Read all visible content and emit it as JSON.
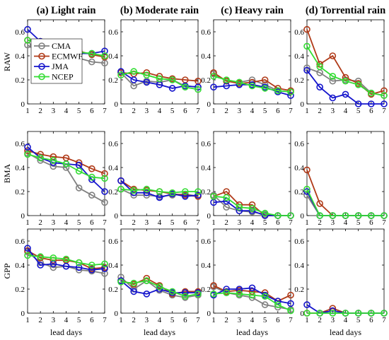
{
  "chart_data": {
    "type": "line",
    "columns": [
      "(a) Light rain",
      "(b) Moderate rain",
      "(c) Heavy rain",
      "(d) Torrential rain"
    ],
    "rows": [
      "RAW",
      "BMA",
      "GPP"
    ],
    "xlabel": "lead days",
    "x": [
      1,
      2,
      3,
      4,
      5,
      6,
      7
    ],
    "ylim": [
      0,
      0.7
    ],
    "yticks": [
      0,
      0.2,
      0.4,
      0.6
    ],
    "ytick_labels": [
      "0",
      "0.2",
      "0.4",
      "0.6"
    ],
    "grid": false,
    "legend": {
      "placement": "inside top-left of first panel",
      "entries": [
        "CMA",
        "ECMWF",
        "JMA",
        "NCEP"
      ]
    },
    "series_colors": {
      "CMA": "#808080",
      "ECMWF": "#b03a18",
      "JMA": "#1515cc",
      "NCEP": "#33dd33"
    },
    "panels": [
      {
        "row": "RAW",
        "column": "(a) Light rain",
        "series": [
          {
            "name": "CMA",
            "values": [
              0.49,
              0.42,
              0.38,
              0.41,
              0.38,
              0.35,
              0.34
            ]
          },
          {
            "name": "ECMWF",
            "values": [
              0.53,
              0.52,
              0.45,
              0.44,
              0.44,
              0.41,
              0.39
            ]
          },
          {
            "name": "JMA",
            "values": [
              0.62,
              0.52,
              0.44,
              0.42,
              0.42,
              0.42,
              0.44
            ]
          },
          {
            "name": "NCEP",
            "values": [
              0.53,
              0.51,
              0.47,
              0.45,
              0.43,
              0.42,
              0.4
            ]
          }
        ]
      },
      {
        "row": "RAW",
        "column": "(b) Moderate rain",
        "series": [
          {
            "name": "CMA",
            "values": [
              0.26,
              0.15,
              0.19,
              0.18,
              0.2,
              0.15,
              0.14
            ]
          },
          {
            "name": "ECMWF",
            "values": [
              0.26,
              0.25,
              0.26,
              0.23,
              0.21,
              0.2,
              0.19
            ]
          },
          {
            "name": "JMA",
            "values": [
              0.27,
              0.2,
              0.18,
              0.16,
              0.13,
              0.15,
              0.14
            ]
          },
          {
            "name": "NCEP",
            "values": [
              0.24,
              0.27,
              0.24,
              0.21,
              0.2,
              0.14,
              0.12
            ]
          }
        ]
      },
      {
        "row": "RAW",
        "column": "(c) Heavy rain",
        "series": [
          {
            "name": "CMA",
            "values": [
              0.25,
              0.19,
              0.18,
              0.2,
              0.16,
              0.11,
              0.1
            ]
          },
          {
            "name": "ECMWF",
            "values": [
              0.26,
              0.19,
              0.17,
              0.18,
              0.2,
              0.13,
              0.11
            ]
          },
          {
            "name": "JMA",
            "values": [
              0.14,
              0.15,
              0.16,
              0.16,
              0.14,
              0.1,
              0.07
            ]
          },
          {
            "name": "NCEP",
            "values": [
              0.23,
              0.2,
              0.18,
              0.15,
              0.13,
              0.11,
              0.1
            ]
          }
        ]
      },
      {
        "row": "RAW",
        "column": "(d) Torrential rain",
        "series": [
          {
            "name": "CMA",
            "values": [
              0.3,
              0.26,
              0.19,
              0.2,
              0.19,
              0.09,
              0.07
            ]
          },
          {
            "name": "ECMWF",
            "values": [
              0.62,
              0.33,
              0.4,
              0.22,
              0.17,
              0.08,
              0.11
            ]
          },
          {
            "name": "JMA",
            "values": [
              0.28,
              0.14,
              0.05,
              0.08,
              0.0,
              0.0,
              0.0
            ]
          },
          {
            "name": "NCEP",
            "values": [
              0.48,
              0.31,
              0.23,
              0.19,
              0.16,
              0.09,
              0.07
            ]
          }
        ]
      },
      {
        "row": "BMA",
        "column": "(a) Light rain",
        "series": [
          {
            "name": "CMA",
            "values": [
              0.52,
              0.46,
              0.41,
              0.4,
              0.23,
              0.17,
              0.11
            ]
          },
          {
            "name": "ECMWF",
            "values": [
              0.54,
              0.51,
              0.49,
              0.48,
              0.44,
              0.39,
              0.35
            ]
          },
          {
            "name": "JMA",
            "values": [
              0.57,
              0.48,
              0.44,
              0.43,
              0.42,
              0.3,
              0.2
            ]
          },
          {
            "name": "NCEP",
            "values": [
              0.51,
              0.48,
              0.46,
              0.43,
              0.37,
              0.32,
              0.31
            ]
          }
        ]
      },
      {
        "row": "BMA",
        "column": "(b) Moderate rain",
        "series": [
          {
            "name": "CMA",
            "values": [
              0.22,
              0.17,
              0.17,
              0.16,
              0.17,
              0.18,
              0.16
            ]
          },
          {
            "name": "ECMWF",
            "values": [
              0.29,
              0.22,
              0.21,
              0.2,
              0.18,
              0.17,
              0.16
            ]
          },
          {
            "name": "JMA",
            "values": [
              0.29,
              0.19,
              0.19,
              0.15,
              0.18,
              0.16,
              0.17
            ]
          },
          {
            "name": "NCEP",
            "values": [
              0.22,
              0.21,
              0.22,
              0.2,
              0.19,
              0.2,
              0.2
            ]
          }
        ]
      },
      {
        "row": "BMA",
        "column": "(c) Heavy rain",
        "series": [
          {
            "name": "CMA",
            "values": [
              0.17,
              0.07,
              0.04,
              0.03,
              0.01,
              0.0,
              0.0
            ]
          },
          {
            "name": "ECMWF",
            "values": [
              0.16,
              0.2,
              0.09,
              0.09,
              0.0,
              0.0,
              0.0
            ]
          },
          {
            "name": "JMA",
            "values": [
              0.11,
              0.12,
              0.04,
              0.04,
              0.0,
              0.0,
              0.0
            ]
          },
          {
            "name": "NCEP",
            "values": [
              0.16,
              0.15,
              0.07,
              0.06,
              0.02,
              0.0,
              0.0
            ]
          }
        ]
      },
      {
        "row": "BMA",
        "column": "(d) Torrential rain",
        "series": [
          {
            "name": "CMA",
            "values": [
              0.17,
              0.0,
              0.0,
              0.0,
              0.0,
              0.0,
              0.0
            ]
          },
          {
            "name": "ECMWF",
            "values": [
              0.38,
              0.1,
              0.0,
              0.0,
              0.0,
              0.0,
              0.0
            ]
          },
          {
            "name": "JMA",
            "values": [
              0.2,
              0.0,
              0.0,
              0.0,
              0.0,
              0.0,
              0.0
            ]
          },
          {
            "name": "NCEP",
            "values": [
              0.22,
              0.0,
              0.0,
              0.0,
              0.0,
              0.0,
              0.0
            ]
          }
        ]
      },
      {
        "row": "GPP",
        "column": "(a) Light rain",
        "series": [
          {
            "name": "CMA",
            "values": [
              0.51,
              0.42,
              0.38,
              0.39,
              0.36,
              0.35,
              0.33
            ]
          },
          {
            "name": "ECMWF",
            "values": [
              0.52,
              0.46,
              0.44,
              0.44,
              0.42,
              0.37,
              0.38
            ]
          },
          {
            "name": "JMA",
            "values": [
              0.54,
              0.4,
              0.41,
              0.39,
              0.38,
              0.36,
              0.37
            ]
          },
          {
            "name": "NCEP",
            "values": [
              0.48,
              0.47,
              0.46,
              0.45,
              0.42,
              0.4,
              0.41
            ]
          }
        ]
      },
      {
        "row": "GPP",
        "column": "(b) Moderate rain",
        "series": [
          {
            "name": "CMA",
            "values": [
              0.3,
              0.2,
              0.27,
              0.19,
              0.15,
              0.13,
              0.15
            ]
          },
          {
            "name": "ECMWF",
            "values": [
              0.27,
              0.24,
              0.29,
              0.23,
              0.16,
              0.18,
              0.18
            ]
          },
          {
            "name": "JMA",
            "values": [
              0.27,
              0.18,
              0.16,
              0.2,
              0.17,
              0.17,
              0.17
            ]
          },
          {
            "name": "NCEP",
            "values": [
              0.26,
              0.25,
              0.27,
              0.22,
              0.18,
              0.14,
              0.16
            ]
          }
        ]
      },
      {
        "row": "GPP",
        "column": "(c) Heavy rain",
        "series": [
          {
            "name": "CMA",
            "values": [
              0.22,
              0.17,
              0.15,
              0.13,
              0.07,
              0.05,
              0.03
            ]
          },
          {
            "name": "ECMWF",
            "values": [
              0.23,
              0.18,
              0.19,
              0.18,
              0.17,
              0.1,
              0.15
            ]
          },
          {
            "name": "JMA",
            "values": [
              0.15,
              0.2,
              0.2,
              0.21,
              0.15,
              0.1,
              0.08
            ]
          },
          {
            "name": "NCEP",
            "values": [
              0.16,
              0.17,
              0.16,
              0.15,
              0.14,
              0.07,
              0.02
            ]
          }
        ]
      },
      {
        "row": "GPP",
        "column": "(d) Torrential rain",
        "series": [
          {
            "name": "CMA",
            "values": [
              0.0,
              0.0,
              0.0,
              0.0,
              0.0,
              0.0,
              0.0
            ]
          },
          {
            "name": "ECMWF",
            "values": [
              0.0,
              0.0,
              0.04,
              0.0,
              0.0,
              0.0,
              0.0
            ]
          },
          {
            "name": "JMA",
            "values": [
              0.07,
              0.0,
              0.02,
              0.0,
              0.0,
              0.0,
              0.0
            ]
          },
          {
            "name": "NCEP",
            "values": [
              0.0,
              0.0,
              0.0,
              0.0,
              0.0,
              0.0,
              0.0
            ]
          }
        ]
      }
    ]
  }
}
